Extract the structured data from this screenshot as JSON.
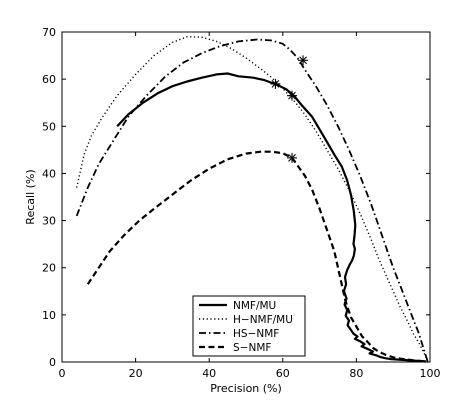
{
  "chart_data": {
    "type": "line",
    "xlabel": "Precision (%)",
    "ylabel": "Recall (%)",
    "xlim": [
      0,
      100
    ],
    "ylim": [
      0,
      70
    ],
    "xticks": [
      0,
      20,
      40,
      60,
      80,
      100
    ],
    "yticks": [
      0,
      10,
      20,
      30,
      40,
      50,
      60,
      70
    ],
    "grid": false,
    "legend_position": "bottom-center",
    "series": [
      {
        "name": "NMF/MU",
        "style": "solid",
        "color": "#000000",
        "x": [
          15,
          18,
          22,
          26,
          30,
          34,
          38,
          42,
          45,
          48,
          52,
          55,
          57,
          59,
          61,
          63,
          65,
          68,
          71,
          74,
          76,
          77.5,
          78.5,
          79.3,
          79.7,
          79.5,
          79.2,
          79.6,
          79.3,
          78.8,
          78.2,
          77.5,
          76.9,
          77.2,
          76.6,
          77.3,
          76.8,
          77.5,
          77.1,
          78.0,
          77.6,
          78.5,
          79.2,
          80.3,
          79.6,
          81.0,
          82.2,
          81.4,
          83.0,
          84.5,
          83.6,
          85.5,
          86.3,
          87.8,
          89.5,
          91.5,
          93.5,
          95.5,
          97.5,
          99.0
        ],
        "y": [
          50,
          52.5,
          55,
          57,
          58.5,
          59.5,
          60.3,
          61,
          61.2,
          60.6,
          60.3,
          59.8,
          59.2,
          58.6,
          57.8,
          56.5,
          54.6,
          52,
          48,
          44,
          41.5,
          38.5,
          35.5,
          32,
          29,
          27,
          25,
          24,
          22.5,
          21.5,
          20.7,
          19.5,
          18,
          16.5,
          15,
          13.5,
          12.2,
          11,
          9.8,
          8.8,
          7.8,
          6.8,
          6,
          5.4,
          4.9,
          4.4,
          3.8,
          3.3,
          2.8,
          2.2,
          1.8,
          1.4,
          1.1,
          0.8,
          0.6,
          0.5,
          0.4,
          0.3,
          0.2,
          0.1
        ],
        "marker": {
          "x": 62.5,
          "y": 56.5
        }
      },
      {
        "name": "H−NMF/MU",
        "style": "dotted",
        "color": "#000000",
        "x": [
          4,
          6,
          8,
          11,
          15,
          20,
          25,
          30,
          34,
          38,
          42,
          46,
          50,
          54,
          57,
          60,
          63,
          66,
          69,
          72,
          75,
          78,
          81,
          84,
          86,
          88,
          90,
          92,
          94,
          95.5,
          97,
          98,
          98.8,
          99.3
        ],
        "y": [
          37,
          44,
          48,
          52,
          56.5,
          61,
          65,
          67.8,
          69,
          68.9,
          68,
          66.5,
          64.5,
          62.2,
          60.3,
          58,
          55.5,
          52.5,
          49,
          45,
          41,
          36.5,
          31.5,
          26,
          22,
          18.5,
          15,
          11.5,
          8.5,
          6,
          4,
          2.5,
          1.2,
          0.3
        ],
        "marker": {
          "x": 58.0,
          "y": 59.0
        }
      },
      {
        "name": "HS−NMF",
        "style": "dashdot",
        "color": "#000000",
        "x": [
          4,
          7,
          10,
          14,
          18,
          23,
          28,
          33,
          38,
          43,
          48,
          53,
          57,
          60,
          62,
          64,
          66,
          69,
          72,
          75,
          78,
          81,
          84,
          86,
          88,
          90,
          92,
          94,
          95.5,
          97,
          98,
          98.8,
          99.3
        ],
        "y": [
          31,
          37,
          42,
          47,
          52,
          56.5,
          60.5,
          63.5,
          65.5,
          67,
          68,
          68.4,
          68.2,
          67.5,
          66.2,
          64.5,
          62,
          58.5,
          54.5,
          50,
          45,
          39.5,
          33.5,
          29,
          24.5,
          20,
          16,
          12,
          9,
          6,
          3.5,
          1.5,
          0.3
        ],
        "marker": {
          "x": 65.5,
          "y": 64.0
        }
      },
      {
        "name": "S−NMF",
        "style": "dashed",
        "color": "#000000",
        "x": [
          7,
          10,
          13,
          17,
          21,
          25,
          30,
          35,
          40,
          45,
          50,
          54,
          57,
          60,
          62.5,
          64,
          66,
          68,
          70,
          72,
          74,
          75,
          76,
          77,
          78.5,
          80,
          81.5,
          83,
          84.5,
          86,
          88,
          90,
          92,
          94,
          96,
          98,
          99.5
        ],
        "y": [
          16.5,
          20,
          23.5,
          27,
          30,
          32.5,
          35.5,
          38.5,
          41,
          43,
          44.2,
          44.6,
          44.6,
          44.3,
          43.3,
          41.7,
          39.5,
          36.5,
          32.5,
          28,
          23.5,
          20,
          16.5,
          13,
          9.5,
          7.5,
          5.5,
          4.3,
          3,
          2.2,
          1.5,
          1.0,
          0.7,
          0.5,
          0.3,
          0.2,
          0.1
        ],
        "marker": {
          "x": 62.5,
          "y": 43.3
        }
      }
    ]
  }
}
